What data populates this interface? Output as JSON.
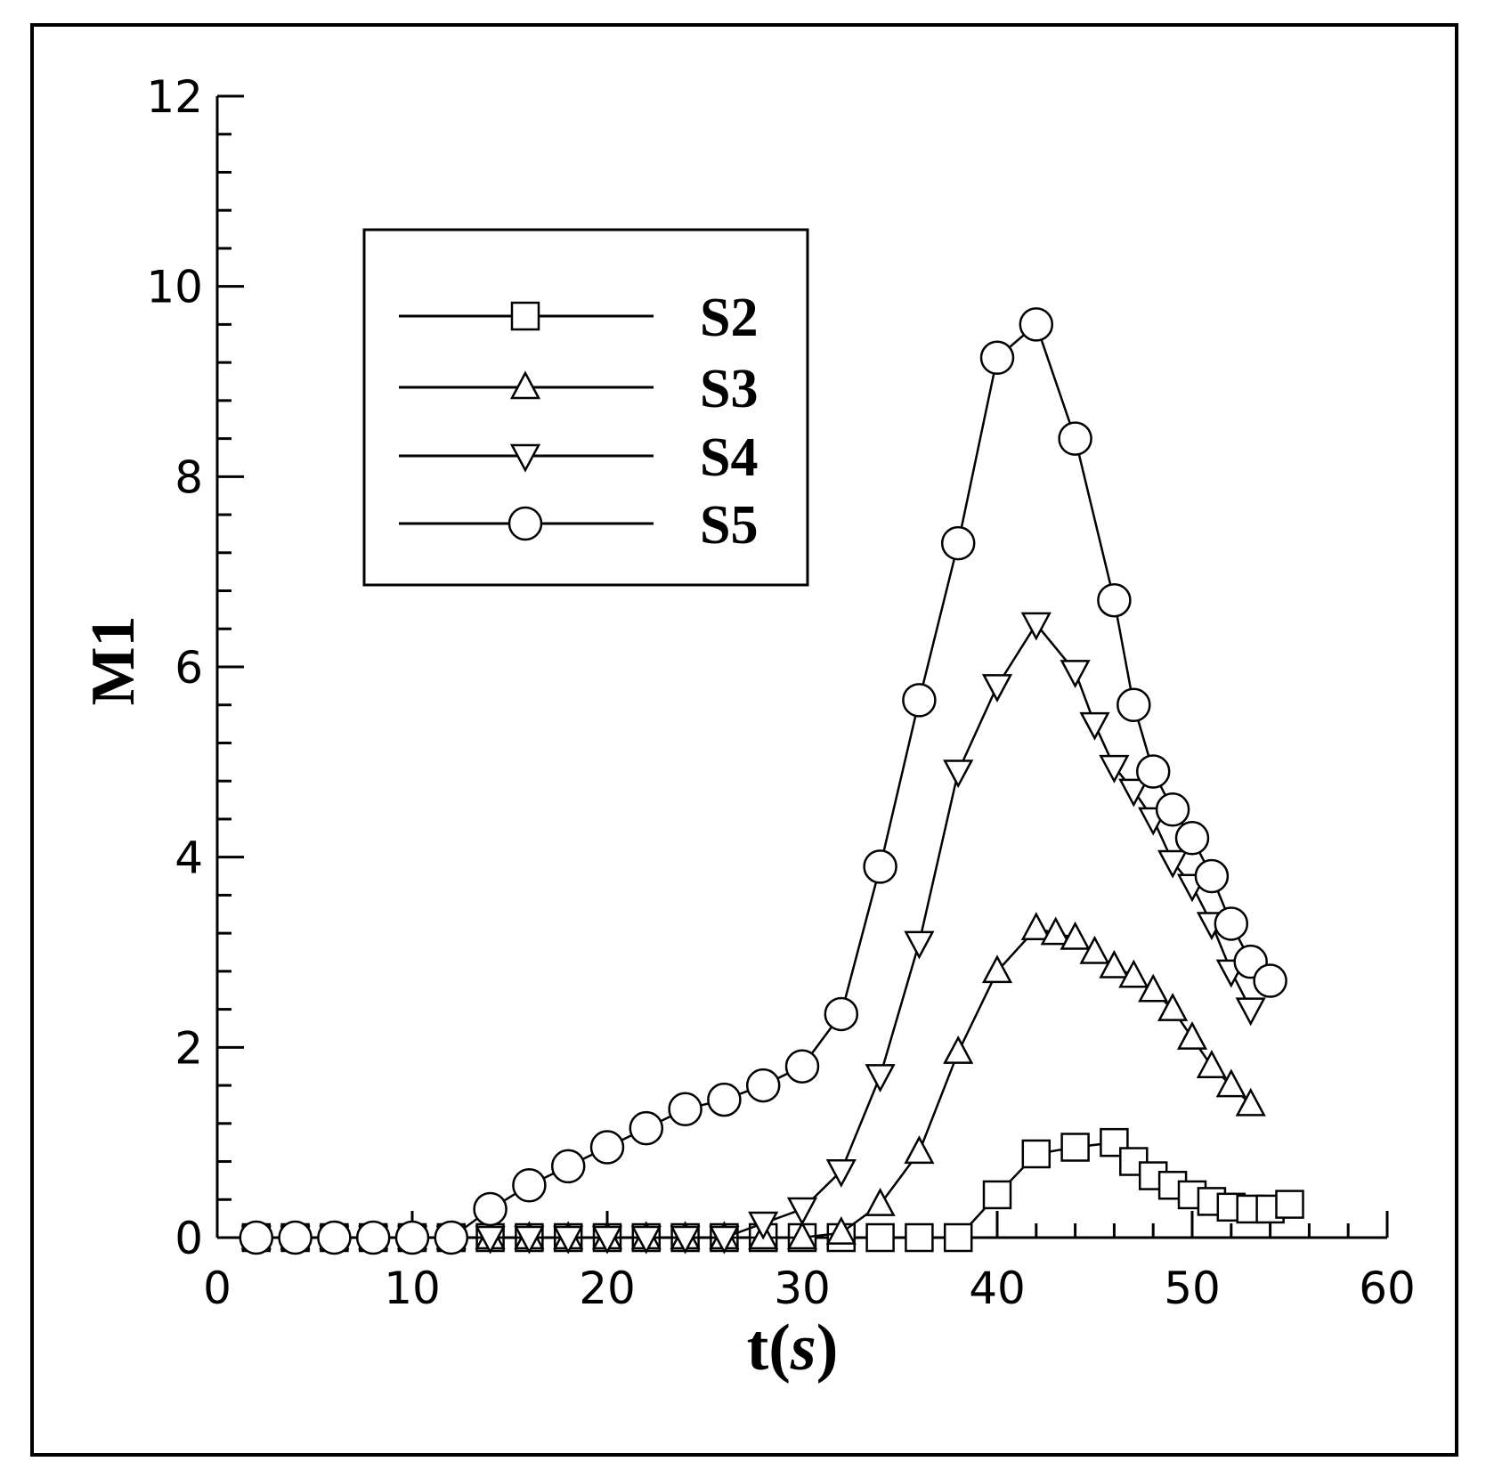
{
  "chart_data": {
    "type": "line",
    "title": "",
    "xlabel_main": "t",
    "xlabel_paren_open": "(",
    "xlabel_unit": "s",
    "xlabel_paren_close": ")",
    "ylabel": "M1",
    "xlim": [
      0,
      60
    ],
    "ylim": [
      0,
      12
    ],
    "x_ticks": [
      0,
      10,
      20,
      30,
      40,
      50,
      60
    ],
    "y_ticks": [
      0,
      2,
      4,
      6,
      8,
      10,
      12
    ],
    "grid": false,
    "legend_position": "upper-left",
    "series": [
      {
        "name": "S2",
        "marker": "square",
        "points": [
          [
            2,
            0
          ],
          [
            4,
            0
          ],
          [
            6,
            0
          ],
          [
            8,
            0
          ],
          [
            10,
            0
          ],
          [
            12,
            0
          ],
          [
            14,
            0
          ],
          [
            16,
            0
          ],
          [
            18,
            0
          ],
          [
            20,
            0
          ],
          [
            22,
            0
          ],
          [
            24,
            0
          ],
          [
            26,
            0
          ],
          [
            28,
            0
          ],
          [
            30,
            0
          ],
          [
            32,
            0
          ],
          [
            34,
            0
          ],
          [
            36,
            0
          ],
          [
            38,
            0
          ],
          [
            40,
            0.45
          ],
          [
            42,
            0.88
          ],
          [
            44,
            0.95
          ],
          [
            46,
            1.0
          ],
          [
            47,
            0.8
          ],
          [
            48,
            0.65
          ],
          [
            49,
            0.55
          ],
          [
            50,
            0.45
          ],
          [
            51,
            0.38
          ],
          [
            52,
            0.32
          ],
          [
            53,
            0.3
          ],
          [
            54,
            0.3
          ],
          [
            55,
            0.35
          ]
        ]
      },
      {
        "name": "S3",
        "marker": "triangle-up",
        "points": [
          [
            2,
            0
          ],
          [
            4,
            0
          ],
          [
            6,
            0
          ],
          [
            8,
            0
          ],
          [
            10,
            0
          ],
          [
            12,
            0
          ],
          [
            14,
            0
          ],
          [
            16,
            0
          ],
          [
            18,
            0
          ],
          [
            20,
            0
          ],
          [
            22,
            0
          ],
          [
            24,
            0
          ],
          [
            26,
            0
          ],
          [
            28,
            0
          ],
          [
            30,
            0
          ],
          [
            32,
            0.05
          ],
          [
            34,
            0.35
          ],
          [
            36,
            0.9
          ],
          [
            38,
            1.95
          ],
          [
            40,
            2.8
          ],
          [
            42,
            3.25
          ],
          [
            43,
            3.2
          ],
          [
            44,
            3.15
          ],
          [
            45,
            3.0
          ],
          [
            46,
            2.85
          ],
          [
            47,
            2.75
          ],
          [
            48,
            2.6
          ],
          [
            49,
            2.4
          ],
          [
            50,
            2.1
          ],
          [
            51,
            1.8
          ],
          [
            52,
            1.6
          ],
          [
            53,
            1.4
          ]
        ]
      },
      {
        "name": "S4",
        "marker": "triangle-down",
        "points": [
          [
            2,
            0
          ],
          [
            4,
            0
          ],
          [
            6,
            0
          ],
          [
            8,
            0
          ],
          [
            10,
            0
          ],
          [
            12,
            0
          ],
          [
            14,
            0
          ],
          [
            16,
            0
          ],
          [
            18,
            0
          ],
          [
            20,
            0
          ],
          [
            22,
            0
          ],
          [
            24,
            0
          ],
          [
            26,
            0
          ],
          [
            28,
            0.15
          ],
          [
            30,
            0.3
          ],
          [
            32,
            0.7
          ],
          [
            34,
            1.7
          ],
          [
            36,
            3.1
          ],
          [
            38,
            4.9
          ],
          [
            40,
            5.8
          ],
          [
            42,
            6.45
          ],
          [
            44,
            5.95
          ],
          [
            45,
            5.4
          ],
          [
            46,
            4.95
          ],
          [
            47,
            4.7
          ],
          [
            48,
            4.4
          ],
          [
            49,
            3.95
          ],
          [
            50,
            3.7
          ],
          [
            51,
            3.3
          ],
          [
            52,
            2.8
          ],
          [
            53,
            2.4
          ]
        ]
      },
      {
        "name": "S5",
        "marker": "circle",
        "points": [
          [
            2,
            0
          ],
          [
            4,
            0
          ],
          [
            6,
            0
          ],
          [
            8,
            0
          ],
          [
            10,
            0
          ],
          [
            12,
            0
          ],
          [
            14,
            0.3
          ],
          [
            16,
            0.55
          ],
          [
            18,
            0.75
          ],
          [
            20,
            0.95
          ],
          [
            22,
            1.15
          ],
          [
            24,
            1.35
          ],
          [
            26,
            1.45
          ],
          [
            28,
            1.6
          ],
          [
            30,
            1.8
          ],
          [
            32,
            2.35
          ],
          [
            34,
            3.9
          ],
          [
            36,
            5.65
          ],
          [
            38,
            7.3
          ],
          [
            40,
            9.25
          ],
          [
            42,
            9.6
          ],
          [
            44,
            8.4
          ],
          [
            46,
            6.7
          ],
          [
            47,
            5.6
          ],
          [
            48,
            4.9
          ],
          [
            49,
            4.5
          ],
          [
            50,
            4.2
          ],
          [
            51,
            3.8
          ],
          [
            52,
            3.3
          ],
          [
            53,
            2.9
          ],
          [
            54,
            2.7
          ]
        ]
      }
    ]
  }
}
